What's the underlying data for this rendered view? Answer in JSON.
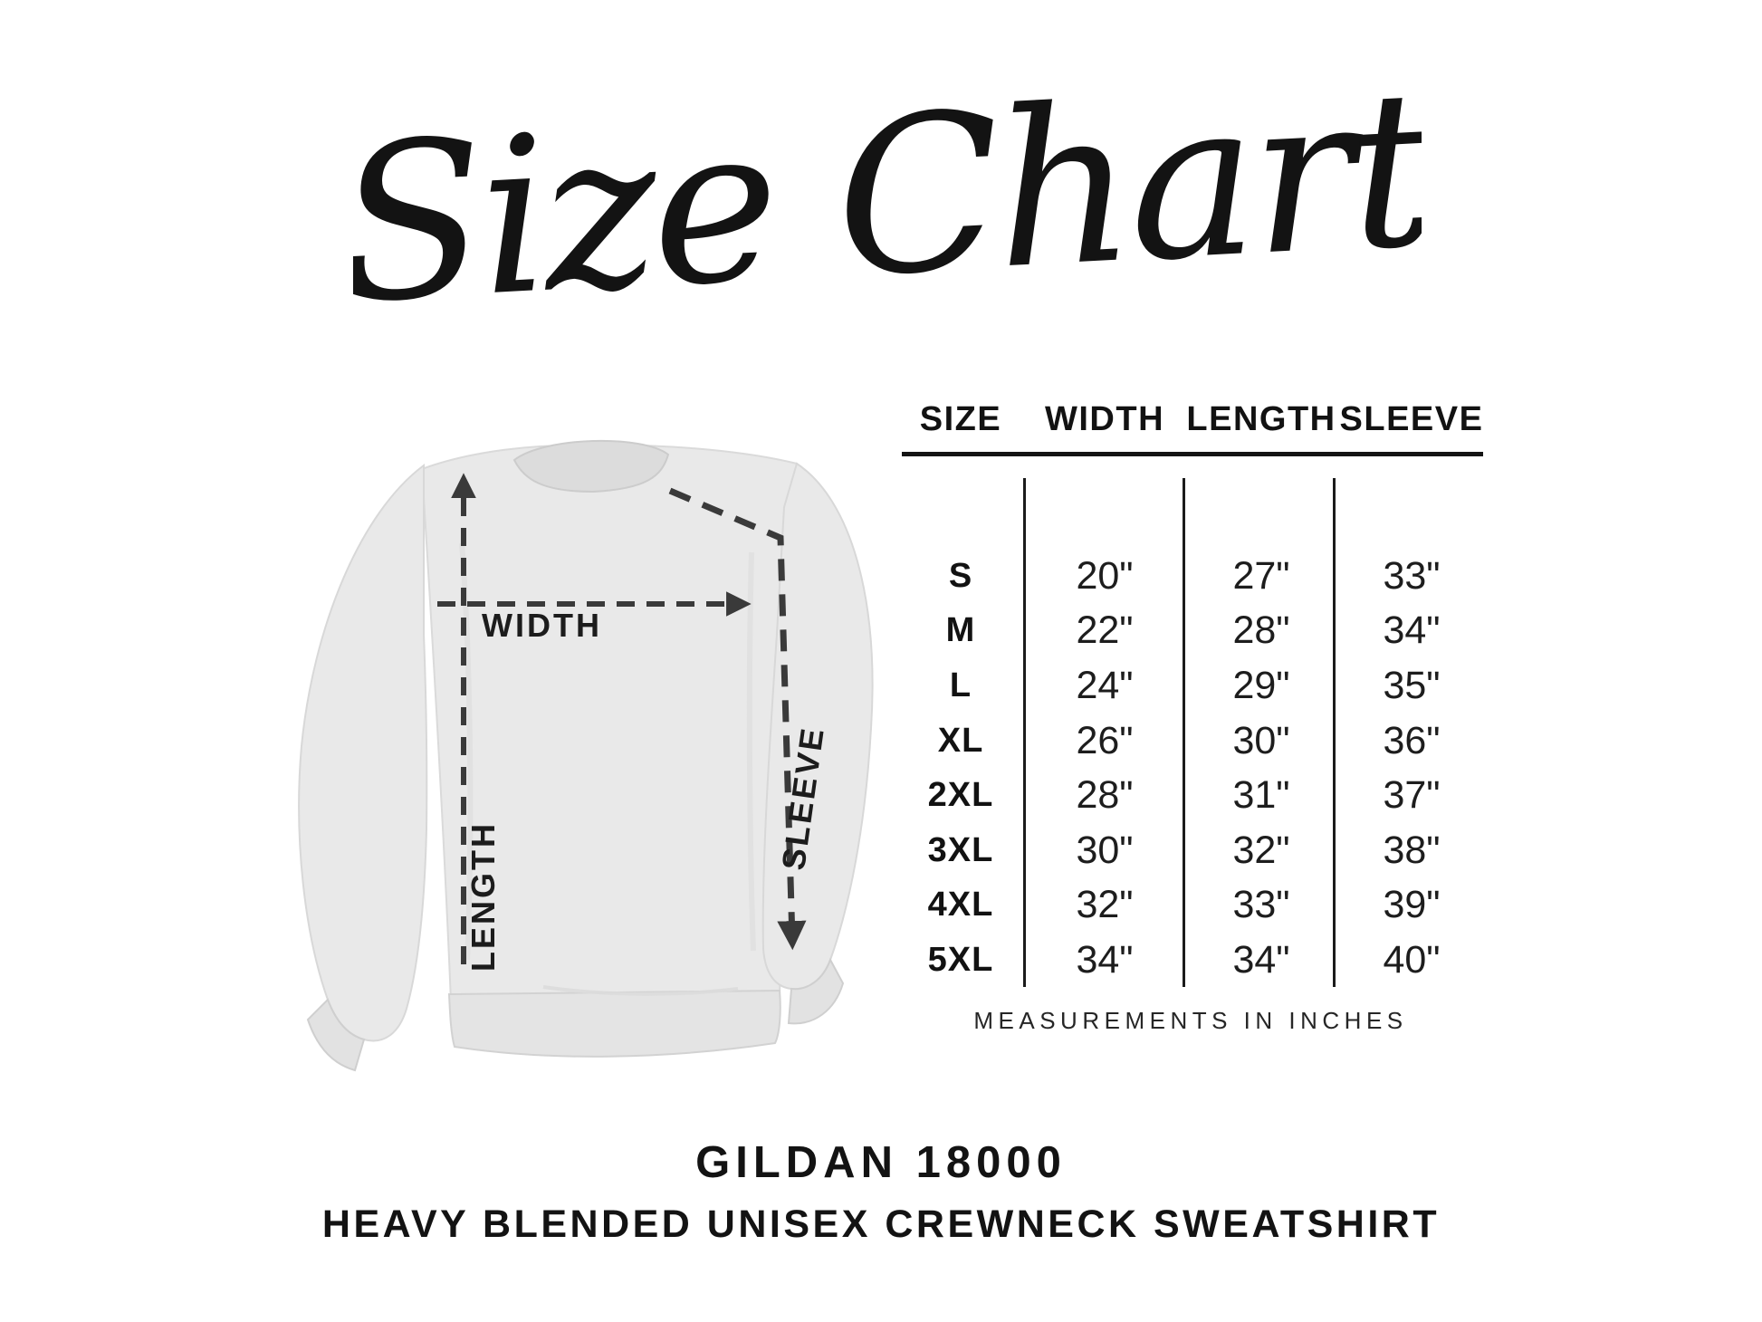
{
  "title": "Size Chart",
  "diagram": {
    "width_label": "WIDTH",
    "length_label": "LENGTH",
    "sleeve_label": "SLEEVE"
  },
  "table": {
    "headers": [
      "SIZE",
      "WIDTH",
      "LENGTH",
      "SLEEVE"
    ],
    "rows": [
      {
        "size": "S",
        "width": "20\"",
        "length": "27\"",
        "sleeve": "33\""
      },
      {
        "size": "M",
        "width": "22\"",
        "length": "28\"",
        "sleeve": "34\""
      },
      {
        "size": "L",
        "width": "24\"",
        "length": "29\"",
        "sleeve": "35\""
      },
      {
        "size": "XL",
        "width": "26\"",
        "length": "30\"",
        "sleeve": "36\""
      },
      {
        "size": "2XL",
        "width": "28\"",
        "length": "31\"",
        "sleeve": "37\""
      },
      {
        "size": "3XL",
        "width": "30\"",
        "length": "32\"",
        "sleeve": "38\""
      },
      {
        "size": "4XL",
        "width": "32\"",
        "length": "33\"",
        "sleeve": "39\""
      },
      {
        "size": "5XL",
        "width": "34\"",
        "length": "34\"",
        "sleeve": "40\""
      }
    ],
    "note": "MEASUREMENTS IN INCHES"
  },
  "footer": {
    "line1": "GILDAN 18000",
    "line2": "HEAVY BLENDED UNISEX CREWNECK SWEATSHIRT"
  },
  "colors": {
    "ink": "#131313",
    "dash_line": "#3a3a3a",
    "shirt_fill": "#e9e9e9",
    "shirt_shade": "#dcdcdc",
    "background": "#ffffff"
  },
  "chart_data": {
    "type": "table",
    "title": "Size Chart",
    "columns": [
      "SIZE",
      "WIDTH",
      "LENGTH",
      "SLEEVE"
    ],
    "units": "inches",
    "rows": [
      [
        "S",
        20,
        27,
        33
      ],
      [
        "M",
        22,
        28,
        34
      ],
      [
        "L",
        24,
        29,
        35
      ],
      [
        "XL",
        26,
        30,
        36
      ],
      [
        "2XL",
        28,
        31,
        37
      ],
      [
        "3XL",
        30,
        32,
        38
      ],
      [
        "4XL",
        32,
        33,
        39
      ],
      [
        "5XL",
        34,
        34,
        40
      ]
    ],
    "note": "MEASUREMENTS IN INCHES",
    "product": "GILDAN 18000 HEAVY BLENDED UNISEX CREWNECK SWEATSHIRT"
  }
}
